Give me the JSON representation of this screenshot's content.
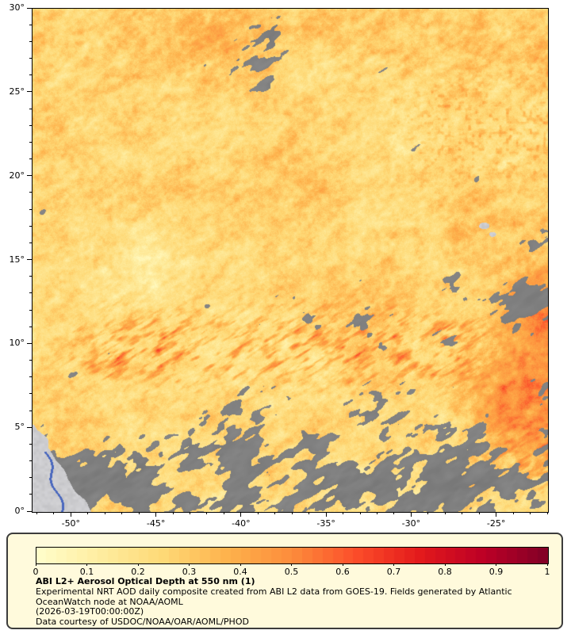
{
  "figure": {
    "title": "ABI L2+ Aerosol Optical Depth at 550 nm (1)",
    "caption_lines": [
      "Experimental NRT AOD daily composite created from ABI L2 data from GOES-19. Fields generated by Atlantic",
      "OceanWatch node at NOAA/AOML",
      "(2026-03-19T00:00:00Z)",
      "Data courtesy of USDOC/NOAA/OAR/AOML/PHOD"
    ]
  },
  "map": {
    "x_axis": {
      "tick_values": [
        -50,
        -45,
        -40,
        -35,
        -30,
        -25
      ],
      "tick_labels": [
        "-50°",
        "-45°",
        "-40°",
        "-35°",
        "-30°",
        "-25°"
      ],
      "minor_step": 1,
      "lon_range": [
        -52.3,
        -22.0
      ]
    },
    "y_axis": {
      "tick_values": [
        0,
        5,
        10,
        15,
        20,
        25,
        30
      ],
      "tick_labels": [
        "0°",
        "5°",
        "10°",
        "15°",
        "20°",
        "25°",
        "30°"
      ],
      "minor_step": 1,
      "lat_range": [
        0,
        30
      ]
    },
    "colors": {
      "cloud_gray": "#7e7e7e",
      "land_gray": "#cccccd",
      "river_blue": "#4a68be",
      "plot_border": "#000000"
    }
  },
  "colorbar": {
    "tick_values": [
      0,
      0.1,
      0.2,
      0.3,
      0.4,
      0.5,
      0.6,
      0.7,
      0.8,
      0.9,
      1
    ],
    "tick_labels": [
      "0",
      "0.1",
      "0.2",
      "0.3",
      "0.4",
      "0.5",
      "0.6",
      "0.7",
      "0.8",
      "0.9",
      "1"
    ],
    "colors": [
      "#ffffcc",
      "#ffeda0",
      "#fed976",
      "#feb24c",
      "#fd8d3c",
      "#fc4e2a",
      "#e31a1c",
      "#bd0026",
      "#800026"
    ],
    "range": [
      0,
      1
    ]
  },
  "panel": {
    "background": "#fffadc",
    "border": "#3c3c3c"
  },
  "chart_data": {
    "type": "heatmap",
    "title": "ABI L2+ Aerosol Optical Depth at 550 nm (1)",
    "x_axis": "longitude (degrees)",
    "y_axis": "latitude (degrees)",
    "x_range": [
      -52.3,
      -22.0
    ],
    "y_range": [
      0,
      30
    ],
    "value_range": [
      0,
      1
    ],
    "colorbar_tick_labels": [
      "0",
      "0.1",
      "0.2",
      "0.3",
      "0.4",
      "0.5",
      "0.6",
      "0.7",
      "0.8",
      "0.9",
      "1"
    ],
    "colormap_stops": [
      "#ffffcc",
      "#ffeda0",
      "#fed976",
      "#feb24c",
      "#fd8d3c",
      "#fc4e2a",
      "#e31a1c",
      "#bd0026",
      "#800026"
    ],
    "missing_data_color": "#7e7e7e"
  }
}
